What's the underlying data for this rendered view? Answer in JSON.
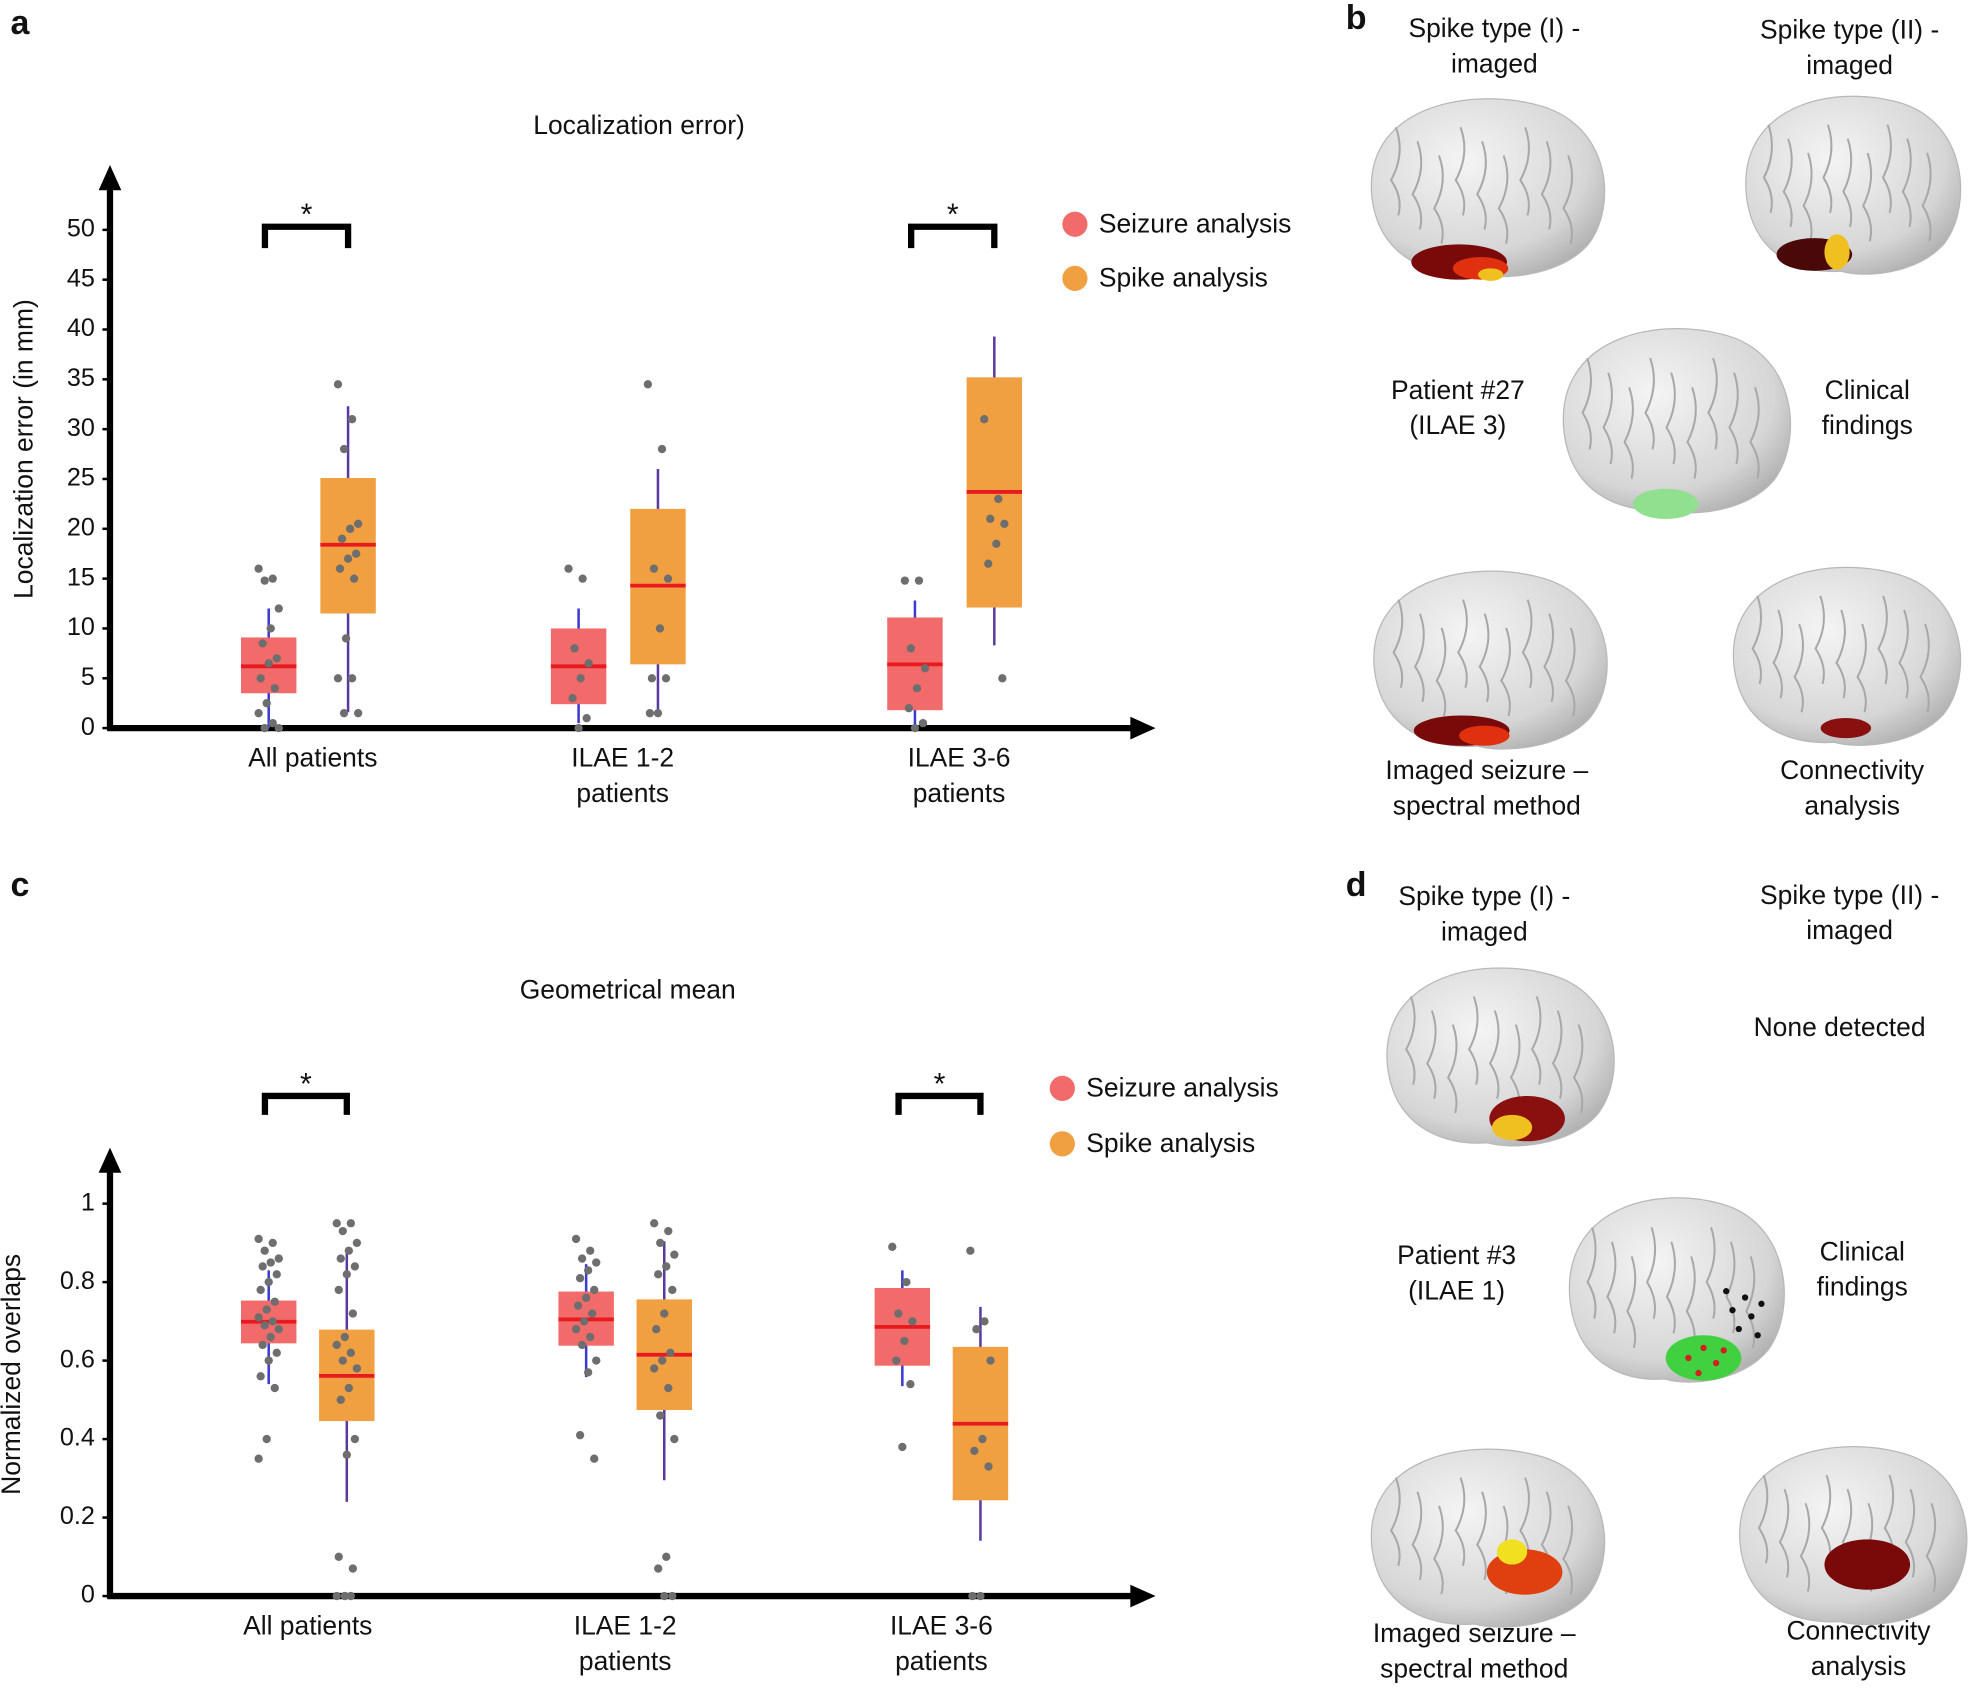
{
  "chart_data": [
    {
      "type": "box",
      "title": "Localization error)",
      "y_label": "Localization error (in mm)",
      "categories": [
        "All patients",
        "ILAE 1-2\npatients",
        "ILAE 3-6\npatients"
      ],
      "ylim": [
        0,
        56
      ],
      "yticks": [
        0,
        5,
        10,
        15,
        20,
        25,
        30,
        35,
        40,
        45,
        50
      ],
      "median_color": "#e8191f",
      "point_color": "#6e6e6e",
      "series": [
        {
          "name": "Seizure analysis",
          "color": "#f26b6b",
          "whisker_color": "#3b3bd0",
          "boxes": [
            {
              "whislo": 0,
              "q1": 3.5,
              "median": 6.2,
              "q3": 9.1,
              "whishi": 12,
              "points": [
                16,
                15,
                14.8,
                12,
                10,
                8.5,
                7,
                6.5,
                5,
                4,
                2.5,
                1.5,
                0.5,
                0,
                0
              ]
            },
            {
              "whislo": 0.5,
              "q1": 2.4,
              "median": 6.2,
              "q3": 10,
              "whishi": 12,
              "points": [
                16,
                15,
                8,
                6.5,
                5,
                3,
                1,
                0
              ]
            },
            {
              "whislo": 0,
              "q1": 1.8,
              "median": 6.4,
              "q3": 11.1,
              "whishi": 12.8,
              "points": [
                14.8,
                14.8,
                8,
                6,
                4,
                2,
                0.5,
                0
              ]
            }
          ]
        },
        {
          "name": "Spike analysis",
          "color": "#f0a040",
          "whisker_color": "#5a3aa0",
          "boxes": [
            {
              "whislo": 1.6,
              "q1": 11.5,
              "median": 18.4,
              "q3": 25.1,
              "whishi": 32.3,
              "points": [
                34.5,
                31,
                28,
                20.5,
                20,
                19,
                17.5,
                17,
                16,
                15,
                9,
                5,
                5,
                1.5,
                1.5
              ]
            },
            {
              "whislo": 1.6,
              "q1": 6.4,
              "median": 14.3,
              "q3": 22,
              "whishi": 26,
              "points": [
                34.5,
                28,
                16,
                15,
                10,
                5,
                5,
                1.5,
                1.5
              ]
            },
            {
              "whislo": 8.3,
              "q1": 12.1,
              "median": 23.7,
              "q3": 35.2,
              "whishi": 39.3,
              "points": [
                31,
                23,
                21,
                20.5,
                18.5,
                16.5,
                5
              ]
            }
          ]
        }
      ],
      "annotations": [
        {
          "text": "*",
          "category": "All patients"
        },
        {
          "text": "*",
          "category": "ILAE 3-6\npatients"
        }
      ]
    },
    {
      "type": "box",
      "title": "Geometrical mean",
      "y_label": "Normalized overlaps",
      "categories": [
        "All patients",
        "ILAE 1-2\npatients",
        "ILAE 3-6\npatients"
      ],
      "ylim": [
        0,
        1.13
      ],
      "yticks": [
        0,
        0.2,
        0.4,
        0.6,
        0.8,
        1
      ],
      "median_color": "#e8191f",
      "point_color": "#6e6e6e",
      "series": [
        {
          "name": "Seizure analysis",
          "color": "#f26b6b",
          "whisker_color": "#3b3bd0",
          "boxes": [
            {
              "whislo": 0.54,
              "q1": 0.644,
              "median": 0.699,
              "q3": 0.753,
              "whishi": 0.83,
              "points": [
                0.91,
                0.9,
                0.88,
                0.86,
                0.85,
                0.84,
                0.82,
                0.8,
                0.78,
                0.75,
                0.73,
                0.71,
                0.7,
                0.69,
                0.68,
                0.66,
                0.64,
                0.62,
                0.6,
                0.56,
                0.53,
                0.4,
                0.35
              ]
            },
            {
              "whislo": 0.558,
              "q1": 0.638,
              "median": 0.705,
              "q3": 0.776,
              "whishi": 0.846,
              "points": [
                0.91,
                0.88,
                0.86,
                0.85,
                0.83,
                0.81,
                0.78,
                0.76,
                0.74,
                0.72,
                0.7,
                0.68,
                0.66,
                0.64,
                0.6,
                0.57,
                0.41,
                0.35
              ]
            },
            {
              "whislo": 0.535,
              "q1": 0.587,
              "median": 0.686,
              "q3": 0.785,
              "whishi": 0.83,
              "points": [
                0.89,
                0.8,
                0.72,
                0.7,
                0.65,
                0.6,
                0.54,
                0.38
              ]
            }
          ]
        },
        {
          "name": "Spike analysis",
          "color": "#f0a040",
          "whisker_color": "#5a3aa0",
          "boxes": [
            {
              "whislo": 0.24,
              "q1": 0.446,
              "median": 0.561,
              "q3": 0.679,
              "whishi": 0.888,
              "points": [
                0.95,
                0.95,
                0.93,
                0.9,
                0.88,
                0.86,
                0.84,
                0.82,
                0.78,
                0.72,
                0.66,
                0.64,
                0.62,
                0.6,
                0.58,
                0.53,
                0.5,
                0.4,
                0.36,
                0.1,
                0.07,
                0,
                0,
                0
              ]
            },
            {
              "whislo": 0.295,
              "q1": 0.474,
              "median": 0.615,
              "q3": 0.756,
              "whishi": 0.904,
              "points": [
                0.95,
                0.93,
                0.9,
                0.87,
                0.84,
                0.82,
                0.78,
                0.72,
                0.68,
                0.62,
                0.6,
                0.58,
                0.53,
                0.46,
                0.4,
                0.1,
                0.07,
                0,
                0
              ]
            },
            {
              "whislo": 0.141,
              "q1": 0.244,
              "median": 0.439,
              "q3": 0.635,
              "whishi": 0.737,
              "points": [
                0.88,
                0.7,
                0.68,
                0.6,
                0.4,
                0.37,
                0.33,
                0,
                0
              ]
            }
          ]
        }
      ],
      "annotations": [
        {
          "text": "*",
          "category": "All patients"
        },
        {
          "text": "*",
          "category": "ILAE 3-6\npatients"
        }
      ]
    }
  ],
  "panel_labels": [
    "a",
    "b",
    "c",
    "d"
  ],
  "brain_panels": [
    {
      "labels": [
        "Spike type (I) -\nimaged",
        "Spike type (II) -\nimaged",
        "Patient #27\n(ILAE 3)",
        "Clinical\nfindings",
        "Imaged seizure –\nspectral method",
        "Connectivity\nanalysis"
      ]
    },
    {
      "labels": [
        "Spike type (I) -\nimaged",
        "Spike type (II) -\nimaged",
        "None detected",
        "Patient #3\n(ILAE 1)",
        "Clinical\nfindings",
        "Imaged seizure –\nspectral method",
        "Connectivity\nanalysis"
      ]
    }
  ]
}
